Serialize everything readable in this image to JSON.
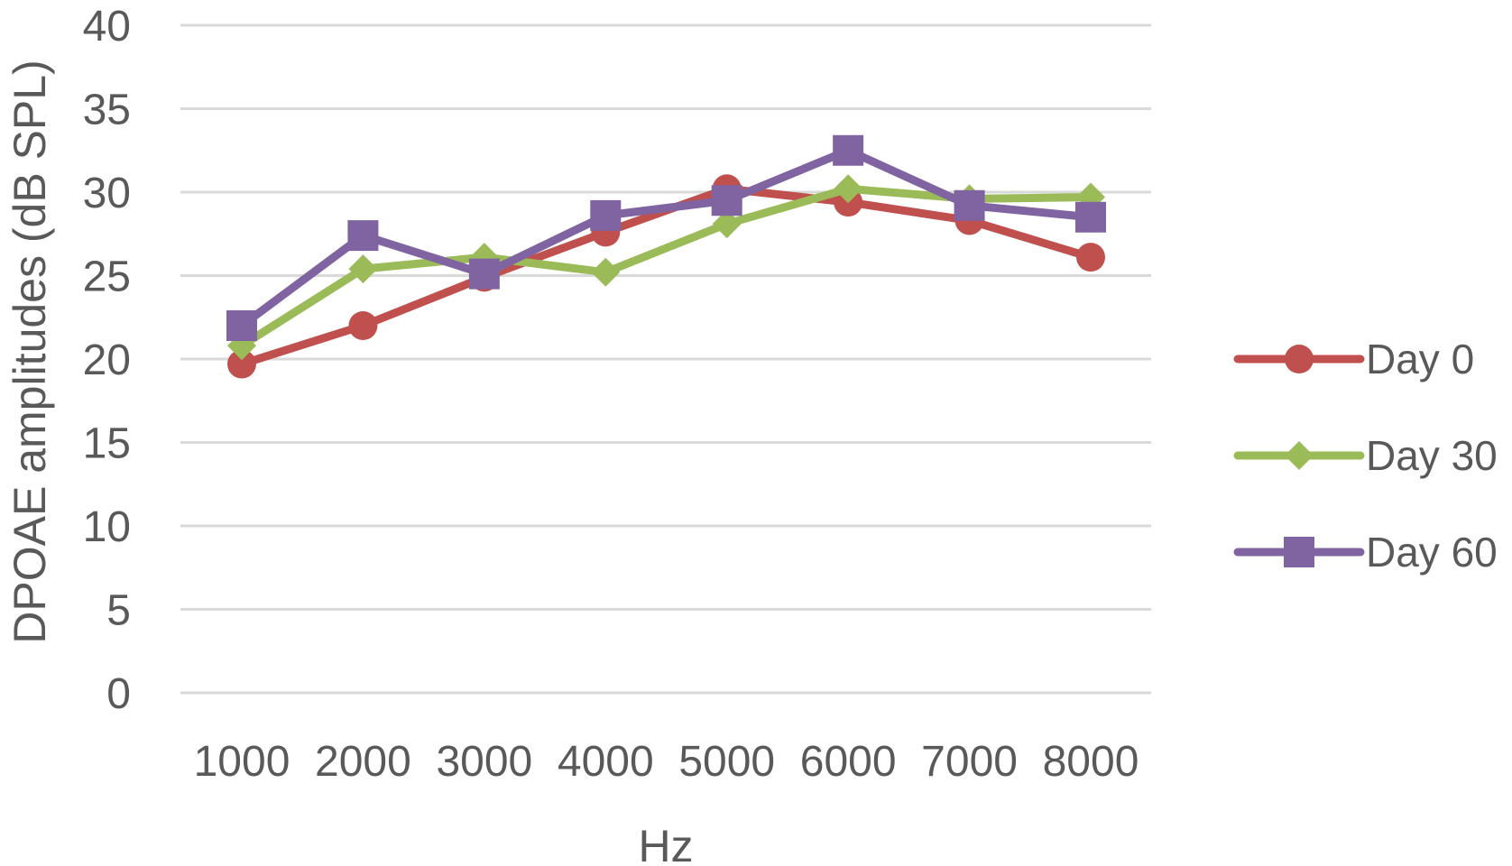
{
  "chart_data": {
    "type": "line",
    "xlabel": "Hz",
    "ylabel": "DPOAE amplitudes (dB SPL)",
    "categories": [
      "1000",
      "2000",
      "3000",
      "4000",
      "5000",
      "6000",
      "7000",
      "8000"
    ],
    "ylim": [
      0,
      40
    ],
    "yticks": [
      "0",
      "5",
      "10",
      "15",
      "20",
      "25",
      "30",
      "35",
      "40"
    ],
    "grid": true,
    "legend_position": "right",
    "series": [
      {
        "name": "Day 0",
        "marker": "circle",
        "color": "#c0504d",
        "values": [
          19.7,
          22.0,
          24.9,
          27.6,
          30.2,
          29.4,
          28.3,
          26.1
        ]
      },
      {
        "name": "Day 30",
        "marker": "diamond",
        "color": "#9bbb59",
        "values": [
          20.8,
          25.4,
          26.1,
          25.2,
          28.1,
          30.2,
          29.6,
          29.7
        ]
      },
      {
        "name": "Day 60",
        "marker": "square",
        "color": "#8064a2",
        "values": [
          22.0,
          27.4,
          25.1,
          28.6,
          29.5,
          32.5,
          29.2,
          28.5
        ]
      }
    ]
  }
}
